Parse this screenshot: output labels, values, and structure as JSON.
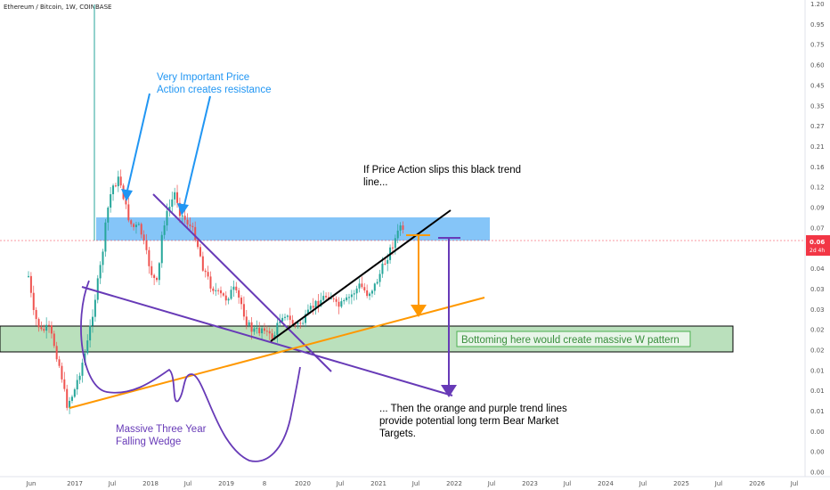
{
  "header": {
    "title": "Ethereum / Bitcoin, 1W, COINBASE"
  },
  "price_badge": {
    "value": "0.06",
    "countdown": "2d 4h"
  },
  "annotations": {
    "resistance_1": "Very Important Price",
    "resistance_2": "Action creates resistance",
    "slip_1": "If Price Action slips this black trend",
    "slip_2": "line...",
    "bottom": "Bottoming here would create massive W pattern",
    "bear_1": "... Then the orange and purple trend lines",
    "bear_2": "provide potential long term Bear Market",
    "bear_3": "Targets.",
    "wedge_1": "Massive Three Year",
    "wedge_2": "Falling Wedge"
  },
  "colors": {
    "up": "#26a69a",
    "down": "#ef5350",
    "resistance": "#2196f3",
    "support": "#4caf50",
    "wedge": "#673ab7",
    "trend_orange": "#ff9800",
    "trend_black": "#000000",
    "badge": "#f23645"
  },
  "chart_data": {
    "type": "candlestick",
    "title": "Ethereum / Bitcoin, 1W, COINBASE",
    "y_ticks": [
      "1.20",
      "0.95",
      "0.75",
      "0.60",
      "0.45",
      "0.35",
      "0.27",
      "0.21",
      "0.16",
      "0.12",
      "0.09",
      "0.07",
      "0.06",
      "0.04",
      "0.03",
      "0.03",
      "0.02",
      "0.02",
      "0.01",
      "0.01",
      "0.01",
      "0.00",
      "0.00",
      "0.00"
    ],
    "x_ticks": [
      "Jun",
      "2017",
      "Jul",
      "2018",
      "Jul",
      "2019",
      "8",
      "2020",
      "Jul",
      "2021",
      "Jul",
      "2022",
      "Jul",
      "2023",
      "Jul",
      "2024",
      "Jul",
      "2025",
      "Jul",
      "2026",
      "Jul"
    ],
    "last_price": 0.06,
    "anchors": [
      [
        0.0,
        310
      ],
      [
        0.02,
        352
      ],
      [
        0.05,
        372
      ],
      [
        0.08,
        368
      ],
      [
        0.1,
        385
      ],
      [
        0.13,
        420
      ],
      [
        0.15,
        455
      ],
      [
        0.18,
        440
      ],
      [
        0.2,
        420
      ],
      [
        0.23,
        390
      ],
      [
        0.26,
        340
      ],
      [
        0.29,
        290
      ],
      [
        0.31,
        240
      ],
      [
        0.33,
        210
      ],
      [
        0.36,
        200
      ],
      [
        0.39,
        240
      ],
      [
        0.41,
        255
      ],
      [
        0.44,
        255
      ],
      [
        0.47,
        290
      ],
      [
        0.49,
        310
      ],
      [
        0.51,
        320
      ],
      [
        0.53,
        255
      ],
      [
        0.56,
        230
      ],
      [
        0.58,
        215
      ],
      [
        0.6,
        240
      ],
      [
        0.63,
        250
      ],
      [
        0.66,
        265
      ],
      [
        0.69,
        300
      ],
      [
        0.72,
        320
      ],
      [
        0.75,
        330
      ],
      [
        0.78,
        335
      ],
      [
        0.81,
        325
      ],
      [
        0.84,
        340
      ],
      [
        0.86,
        360
      ],
      [
        0.88,
        370
      ],
      [
        0.91,
        372
      ],
      [
        0.93,
        365
      ],
      [
        0.95,
        378
      ],
      [
        0.97,
        378
      ],
      [
        0.99,
        360
      ],
      [
        1.01,
        350
      ],
      [
        1.03,
        360
      ],
      [
        1.06,
        365
      ],
      [
        1.09,
        360
      ],
      [
        1.12,
        345
      ],
      [
        1.14,
        340
      ],
      [
        1.16,
        335
      ],
      [
        1.19,
        330
      ],
      [
        1.22,
        345
      ],
      [
        1.25,
        340
      ],
      [
        1.28,
        330
      ],
      [
        1.31,
        320
      ],
      [
        1.34,
        330
      ],
      [
        1.37,
        320
      ],
      [
        1.4,
        300
      ],
      [
        1.43,
        280
      ],
      [
        1.46,
        262
      ],
      [
        1.47,
        252
      ],
      [
        1.48,
        262
      ]
    ]
  }
}
